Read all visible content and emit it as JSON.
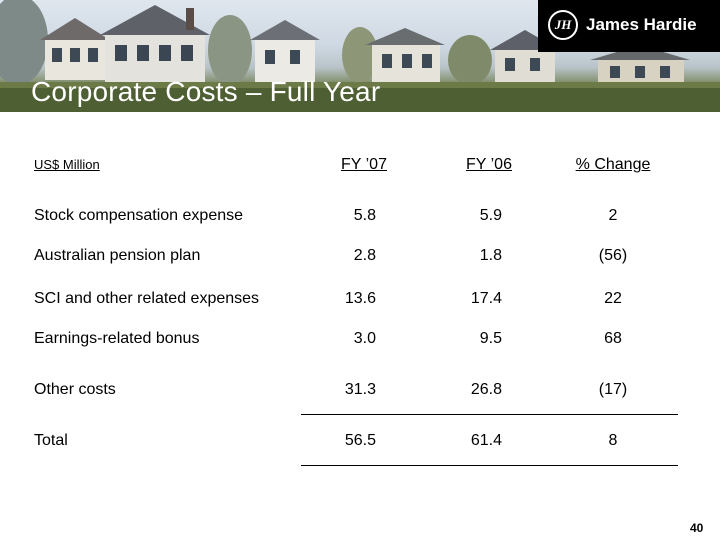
{
  "header": {
    "title": "Corporate Costs – Full Year",
    "brand": "James Hardie",
    "brand_mark": "JH"
  },
  "table": {
    "unit_label": "US$ Million",
    "columns": [
      "FY ’07",
      "FY ’06",
      "% Change"
    ],
    "rows": [
      {
        "label": "Stock compensation expense",
        "fy07": "5.8",
        "fy06": "5.9",
        "change": "2"
      },
      {
        "label": "Australian pension plan",
        "fy07": "2.8",
        "fy06": "1.8",
        "change": "(56)"
      },
      {
        "label": "SCI and other related expenses",
        "fy07": "13.6",
        "fy06": "17.4",
        "change": "22"
      },
      {
        "label": "Earnings-related bonus",
        "fy07": "3.0",
        "fy06": "9.5",
        "change": "68"
      },
      {
        "label": "Other costs",
        "fy07": "31.3",
        "fy06": "26.8",
        "change": "(17)"
      }
    ],
    "total": {
      "label": "Total",
      "fy07": "56.5",
      "fy06": "61.4",
      "change": "8"
    }
  },
  "page_number": "40"
}
